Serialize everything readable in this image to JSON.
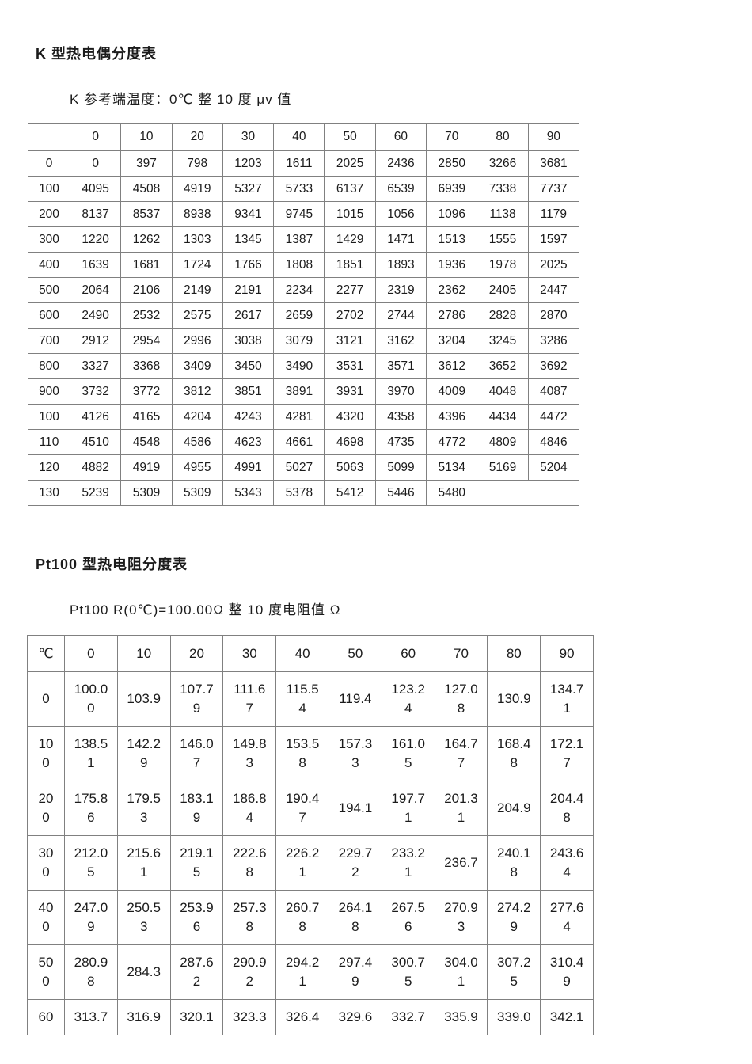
{
  "k_table": {
    "title": "K 型热电偶分度表",
    "subtitle": "K 参考端温度：0℃ 整 10 度 μv 值",
    "columns": [
      "",
      "0",
      "10",
      "20",
      "30",
      "40",
      "50",
      "60",
      "70",
      "80",
      "90"
    ],
    "rows": [
      {
        "label": "0",
        "values": [
          "0",
          "397",
          "798",
          "1203",
          "1611",
          "2025",
          "2436",
          "2850",
          "3266",
          "3681"
        ]
      },
      {
        "label": "100",
        "values": [
          "4095",
          "4508",
          "4919",
          "5327",
          "5733",
          "6137",
          "6539",
          "6939",
          "7338",
          "7737"
        ]
      },
      {
        "label": "200",
        "values": [
          "8137",
          "8537",
          "8938",
          "9341",
          "9745",
          "1015",
          "1056",
          "1096",
          "1138",
          "1179"
        ]
      },
      {
        "label": "300",
        "values": [
          "1220",
          "1262",
          "1303",
          "1345",
          "1387",
          "1429",
          "1471",
          "1513",
          "1555",
          "1597"
        ]
      },
      {
        "label": "400",
        "values": [
          "1639",
          "1681",
          "1724",
          "1766",
          "1808",
          "1851",
          "1893",
          "1936",
          "1978",
          "2025"
        ]
      },
      {
        "label": "500",
        "values": [
          "2064",
          "2106",
          "2149",
          "2191",
          "2234",
          "2277",
          "2319",
          "2362",
          "2405",
          "2447"
        ]
      },
      {
        "label": "600",
        "values": [
          "2490",
          "2532",
          "2575",
          "2617",
          "2659",
          "2702",
          "2744",
          "2786",
          "2828",
          "2870"
        ]
      },
      {
        "label": "700",
        "values": [
          "2912",
          "2954",
          "2996",
          "3038",
          "3079",
          "3121",
          "3162",
          "3204",
          "3245",
          "3286"
        ]
      },
      {
        "label": "800",
        "values": [
          "3327",
          "3368",
          "3409",
          "3450",
          "3490",
          "3531",
          "3571",
          "3612",
          "3652",
          "3692"
        ]
      },
      {
        "label": "900",
        "values": [
          "3732",
          "3772",
          "3812",
          "3851",
          "3891",
          "3931",
          "3970",
          "4009",
          "4048",
          "4087"
        ]
      },
      {
        "label": "100",
        "values": [
          "4126",
          "4165",
          "4204",
          "4243",
          "4281",
          "4320",
          "4358",
          "4396",
          "4434",
          "4472"
        ]
      },
      {
        "label": "110",
        "values": [
          "4510",
          "4548",
          "4586",
          "4623",
          "4661",
          "4698",
          "4735",
          "4772",
          "4809",
          "4846"
        ]
      },
      {
        "label": "120",
        "values": [
          "4882",
          "4919",
          "4955",
          "4991",
          "5027",
          "5063",
          "5099",
          "5134",
          "5169",
          "5204"
        ]
      },
      {
        "label": "130",
        "values": [
          "5239",
          "5309",
          "5309",
          "5343",
          "5378",
          "5412",
          "5446",
          "5480"
        ]
      }
    ]
  },
  "pt100_table": {
    "title": "Pt100 型热电阻分度表",
    "subtitle": "Pt100 R(0℃)=100.00Ω 整 10 度电阻值 Ω",
    "columns": [
      "℃",
      "0",
      "10",
      "20",
      "30",
      "40",
      "50",
      "60",
      "70",
      "80",
      "90"
    ],
    "rows": [
      {
        "label": "0",
        "values": [
          "100.00",
          "103.9",
          "107.79",
          "111.67",
          "115.54",
          "119.4",
          "123.24",
          "127.08",
          "130.9",
          "134.71"
        ]
      },
      {
        "label": "100",
        "values": [
          "138.51",
          "142.29",
          "146.07",
          "149.83",
          "153.58",
          "157.33",
          "161.05",
          "164.77",
          "168.48",
          "172.17"
        ]
      },
      {
        "label": "200",
        "values": [
          "175.86",
          "179.53",
          "183.19",
          "186.84",
          "190.47",
          "194.1",
          "197.71",
          "201.31",
          "204.9",
          "204.48"
        ]
      },
      {
        "label": "300",
        "values": [
          "212.05",
          "215.61",
          "219.15",
          "222.68",
          "226.21",
          "229.72",
          "233.21",
          "236.7",
          "240.18",
          "243.64"
        ]
      },
      {
        "label": "400",
        "values": [
          "247.09",
          "250.53",
          "253.96",
          "257.38",
          "260.78",
          "264.18",
          "267.56",
          "270.93",
          "274.29",
          "277.64"
        ]
      },
      {
        "label": "500",
        "values": [
          "280.98",
          "284.3",
          "287.62",
          "290.92",
          "294.21",
          "297.49",
          "300.75",
          "304.01",
          "307.25",
          "310.49"
        ]
      },
      {
        "label": "60",
        "values": [
          "313.7",
          "316.9",
          "320.1",
          "323.3",
          "326.4",
          "329.6",
          "332.7",
          "335.9",
          "339.0",
          "342.1"
        ]
      }
    ]
  }
}
